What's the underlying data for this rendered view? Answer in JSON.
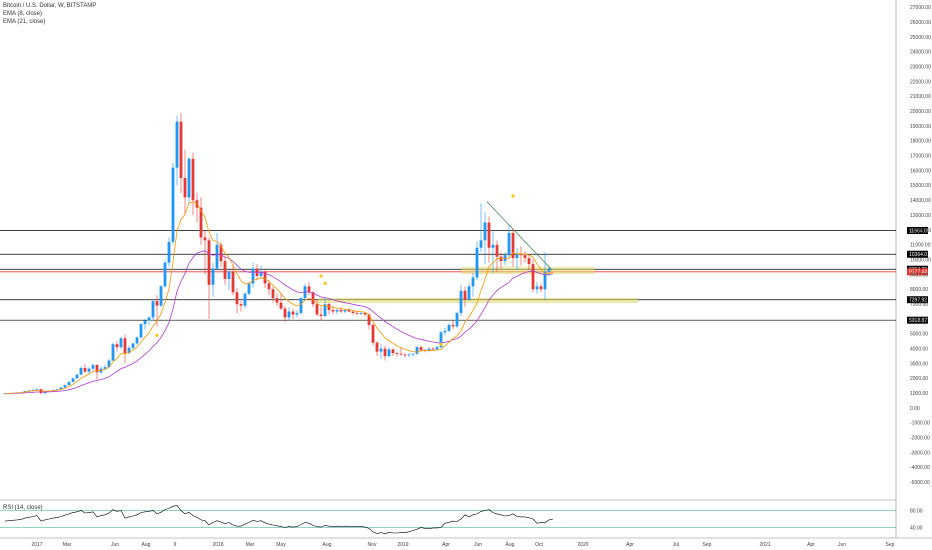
{
  "header": {
    "title": "Bitcoin / U.S. Dollar, W, BITSTAMP",
    "ema_fast": "EMA (8, close)",
    "ema_slow": "EMA (21, close)"
  },
  "rsi_panel": {
    "title": "RSI (14, close)",
    "upper_label": "80.00",
    "lower_label": "40.00"
  },
  "colors": {
    "up": "#2196f3",
    "down": "#e53935",
    "ema_fast": "#ff9800",
    "ema_slow": "#b23bd6",
    "level_line": "#000000",
    "red_level": "#e53935",
    "zone": "#e6e067",
    "rsi_line": "#000000",
    "rsi_band": "#26a69a",
    "marker": "#f5c518"
  },
  "chart_data": {
    "type": "candlestick",
    "y_ticks": [
      "27000.00",
      "26000.00",
      "25000.00",
      "24000.00",
      "23000.00",
      "22000.00",
      "21000.00",
      "20000.00",
      "19000.00",
      "18000.00",
      "17000.00",
      "16000.00",
      "15000.00",
      "14000.00",
      "13000.00",
      "12000.00",
      "11000.00",
      "10000.00",
      "9000.00",
      "8000.00",
      "7000.00",
      "6000.00",
      "5000.00",
      "4000.00",
      "3000.00",
      "2000.00",
      "1000.00",
      "0.00",
      "-1000.00",
      "-2000.00",
      "-3000.00",
      "-4000.00",
      "-5000.00"
    ],
    "ylim": [
      -6000,
      27500
    ],
    "x_ticks": [
      "2017",
      "Mar",
      "Jun",
      "Aug",
      "9",
      "2018",
      "Mar",
      "May",
      "Aug",
      "Nov",
      "2019",
      "Apr",
      "Jun",
      "Aug",
      "Oct",
      "2020",
      "Apr",
      "Jul",
      "Sep",
      "2021",
      "Apr",
      "Jun",
      "Sep"
    ],
    "levels": [
      {
        "value": 11964.09,
        "label": "11964.09",
        "color": "#000000"
      },
      {
        "value": 10364.01,
        "label": "10364.01",
        "color": "#000000"
      },
      {
        "value": 9353.28,
        "label": "9353.28",
        "color": "#000000"
      },
      {
        "value": 9177.44,
        "label": "9177.44",
        "color": "#e53935"
      },
      {
        "value": 7297.92,
        "label": "7297.92",
        "color": "#000000"
      },
      {
        "value": 5918.87,
        "label": "5918.87",
        "color": "#000000"
      }
    ],
    "candles": [
      [
        960,
        1000,
        950,
        995
      ],
      [
        995,
        1010,
        980,
        1000
      ],
      [
        1000,
        1030,
        990,
        1020
      ],
      [
        1020,
        1060,
        1010,
        1050
      ],
      [
        1050,
        1080,
        1020,
        1060
      ],
      [
        1060,
        1150,
        1050,
        1140
      ],
      [
        1140,
        1200,
        1100,
        1180
      ],
      [
        1180,
        1250,
        1150,
        1220
      ],
      [
        1220,
        1300,
        1180,
        1270
      ],
      [
        1270,
        1290,
        950,
        1000
      ],
      [
        1000,
        1110,
        960,
        1080
      ],
      [
        1080,
        1160,
        1060,
        1150
      ],
      [
        1150,
        1230,
        1130,
        1210
      ],
      [
        1210,
        1280,
        1180,
        1260
      ],
      [
        1260,
        1400,
        1240,
        1380
      ],
      [
        1380,
        1560,
        1360,
        1540
      ],
      [
        1540,
        1800,
        1520,
        1760
      ],
      [
        1760,
        2050,
        1700,
        2000
      ],
      [
        2000,
        2300,
        1950,
        2250
      ],
      [
        2250,
        2800,
        2200,
        2700
      ],
      [
        2700,
        2950,
        2350,
        2450
      ],
      [
        2450,
        2750,
        2300,
        2650
      ],
      [
        2650,
        3000,
        2500,
        2900
      ],
      [
        2900,
        2950,
        1900,
        2400
      ],
      [
        2400,
        2800,
        2300,
        2650
      ],
      [
        2650,
        2900,
        2550,
        2750
      ],
      [
        2750,
        3300,
        2700,
        3200
      ],
      [
        3200,
        4400,
        3150,
        4300
      ],
      [
        4300,
        4500,
        3800,
        4100
      ],
      [
        4100,
        4800,
        3950,
        4700
      ],
      [
        4700,
        4950,
        3000,
        3700
      ],
      [
        3700,
        4200,
        3600,
        4050
      ],
      [
        4050,
        4400,
        3950,
        4350
      ],
      [
        4350,
        4850,
        4250,
        4750
      ],
      [
        4750,
        5700,
        4700,
        5650
      ],
      [
        5650,
        6000,
        5300,
        5900
      ],
      [
        5900,
        6200,
        5600,
        6100
      ],
      [
        6100,
        7300,
        5900,
        7200
      ],
      [
        7200,
        7600,
        5500,
        6900
      ],
      [
        6900,
        8300,
        6800,
        8200
      ],
      [
        8200,
        10000,
        8100,
        9800
      ],
      [
        9800,
        11500,
        9500,
        11200
      ],
      [
        11200,
        16500,
        11000,
        16200
      ],
      [
        16200,
        19700,
        15000,
        19300
      ],
      [
        19300,
        19900,
        14500,
        15500
      ],
      [
        15500,
        17400,
        13100,
        14200
      ],
      [
        14200,
        16900,
        13700,
        16800
      ],
      [
        16800,
        17200,
        13000,
        14000
      ],
      [
        14000,
        14500,
        12500,
        13500
      ],
      [
        13500,
        14200,
        11000,
        11500
      ],
      [
        11500,
        12000,
        9000,
        11300
      ],
      [
        11300,
        11500,
        6000,
        8300
      ],
      [
        8300,
        9800,
        7500,
        9400
      ],
      [
        9400,
        11800,
        9300,
        11000
      ],
      [
        11000,
        11200,
        9500,
        9900
      ],
      [
        9900,
        10200,
        8300,
        8700
      ],
      [
        8700,
        9300,
        7900,
        9200
      ],
      [
        9200,
        9700,
        7600,
        7800
      ],
      [
        7800,
        8100,
        6400,
        7000
      ],
      [
        7000,
        7200,
        6500,
        6900
      ],
      [
        6900,
        7800,
        6700,
        7700
      ],
      [
        7700,
        8500,
        7600,
        8400
      ],
      [
        8400,
        9800,
        8100,
        9400
      ],
      [
        9400,
        9700,
        8600,
        8900
      ],
      [
        8900,
        9600,
        8700,
        9200
      ],
      [
        9200,
        9300,
        8100,
        8400
      ],
      [
        8400,
        8600,
        7600,
        8000
      ],
      [
        8000,
        8200,
        7100,
        7400
      ],
      [
        7400,
        7700,
        6900,
        7100
      ],
      [
        7100,
        7700,
        6600,
        6700
      ],
      [
        6700,
        6900,
        5800,
        6100
      ],
      [
        6100,
        6800,
        5900,
        6500
      ],
      [
        6500,
        6700,
        6000,
        6300
      ],
      [
        6300,
        6600,
        6100,
        6400
      ],
      [
        6400,
        7500,
        6300,
        7400
      ],
      [
        7400,
        8400,
        7300,
        8200
      ],
      [
        8200,
        8500,
        7600,
        7800
      ],
      [
        7800,
        7900,
        6800,
        7000
      ],
      [
        7000,
        7300,
        6200,
        6300
      ],
      [
        6300,
        6800,
        5900,
        6200
      ],
      [
        6200,
        7400,
        6100,
        7000
      ],
      [
        7000,
        7100,
        6300,
        6600
      ],
      [
        6600,
        6900,
        6300,
        6500
      ],
      [
        6500,
        6700,
        6300,
        6600
      ],
      [
        6600,
        6800,
        6400,
        6500
      ],
      [
        6500,
        6700,
        6400,
        6600
      ],
      [
        6600,
        6750,
        6450,
        6500
      ],
      [
        6500,
        6600,
        6300,
        6400
      ],
      [
        6400,
        6550,
        6250,
        6350
      ],
      [
        6350,
        6500,
        6250,
        6400
      ],
      [
        6400,
        6500,
        6200,
        6300
      ],
      [
        6300,
        6400,
        5300,
        5600
      ],
      [
        5600,
        5700,
        4200,
        4400
      ],
      [
        4400,
        4500,
        3500,
        3800
      ],
      [
        3800,
        4300,
        3300,
        4000
      ],
      [
        4000,
        4200,
        3200,
        3500
      ],
      [
        3500,
        4100,
        3400,
        3950
      ],
      [
        3950,
        4000,
        3500,
        3700
      ],
      [
        3700,
        3800,
        3450,
        3650
      ],
      [
        3650,
        4100,
        3550,
        3600
      ],
      [
        3600,
        3700,
        3400,
        3550
      ],
      [
        3550,
        3700,
        3400,
        3600
      ],
      [
        3600,
        3700,
        3450,
        3650
      ],
      [
        3650,
        4200,
        3600,
        4100
      ],
      [
        4100,
        4200,
        3800,
        3900
      ],
      [
        3900,
        4000,
        3750,
        3850
      ],
      [
        3850,
        4100,
        3800,
        4000
      ],
      [
        4000,
        4100,
        3850,
        3950
      ],
      [
        3950,
        4200,
        3900,
        4100
      ],
      [
        4100,
        5200,
        4000,
        5100
      ],
      [
        5100,
        5400,
        4900,
        5200
      ],
      [
        5200,
        5700,
        5100,
        5600
      ],
      [
        5600,
        5900,
        5300,
        5500
      ],
      [
        5500,
        6500,
        5400,
        6400
      ],
      [
        6400,
        8300,
        6200,
        7900
      ],
      [
        7900,
        8200,
        6800,
        7300
      ],
      [
        7300,
        8400,
        7200,
        8200
      ],
      [
        8200,
        9100,
        7500,
        8800
      ],
      [
        8800,
        11200,
        8600,
        10800
      ],
      [
        10800,
        13800,
        10500,
        11300
      ],
      [
        11300,
        13200,
        9700,
        12500
      ],
      [
        12500,
        12900,
        9800,
        10800
      ],
      [
        10800,
        11900,
        9100,
        11000
      ],
      [
        11000,
        11300,
        9200,
        10200
      ],
      [
        10200,
        10500,
        9400,
        9900
      ],
      [
        9900,
        10500,
        9600,
        10300
      ],
      [
        10300,
        12300,
        10100,
        11800
      ],
      [
        11800,
        12100,
        9500,
        10100
      ],
      [
        10100,
        10800,
        9300,
        10400
      ],
      [
        10400,
        10900,
        9600,
        10300
      ],
      [
        10300,
        10600,
        9800,
        10100
      ],
      [
        10100,
        10300,
        9300,
        9700
      ],
      [
        9700,
        10000,
        7800,
        8000
      ],
      [
        8000,
        8500,
        7700,
        8200
      ],
      [
        8200,
        8400,
        7800,
        8000
      ],
      [
        8000,
        10500,
        7300,
        9200
      ],
      [
        9200,
        9600,
        8900,
        9400
      ]
    ],
    "ema_fast": [
      960,
      980,
      1000,
      1020,
      1040,
      1080,
      1120,
      1160,
      1200,
      1150,
      1130,
      1140,
      1160,
      1190,
      1240,
      1330,
      1450,
      1600,
      1800,
      2000,
      2150,
      2300,
      2450,
      2500,
      2550,
      2600,
      2750,
      3100,
      3350,
      3650,
      3650,
      3750,
      3900,
      4100,
      4450,
      4770,
      5060,
      5520,
      5830,
      6360,
      7120,
      8020,
      9830,
      11920,
      12710,
      13040,
      13840,
      13880,
      13800,
      13290,
      12870,
      11850,
      11290,
      11230,
      10930,
      10430,
      10160,
      9640,
      9050,
      8570,
      8370,
      8380,
      8610,
      8670,
      8790,
      8700,
      8540,
      8290,
      8020,
      7730,
      7370,
      7180,
      7000,
      6870,
      6990,
      7260,
      7380,
      7300,
      7080,
      6880,
      6910,
      6840,
      6770,
      6730,
      6680,
      6660,
      6630,
      6570,
      6520,
      6490,
      6450,
      6260,
      5840,
      5380,
      5070,
      4720,
      4550,
      4360,
      4200,
      4070,
      3950,
      3870,
      3800,
      3770,
      3860,
      3870,
      3860,
      3890,
      3900,
      3940,
      4200,
      4420,
      4680,
      4860,
      5200,
      5800,
      6130,
      6590,
      7080,
      7910,
      8670,
      9520,
      9800,
      10070,
      10100,
      10050,
      10090,
      10470,
      10390,
      10390,
      10370,
      10310,
      10170,
      9690,
      9360,
      9060,
      9090,
      9160
    ],
    "ema_slow": [
      960,
      970,
      980,
      990,
      1000,
      1020,
      1040,
      1060,
      1080,
      1080,
      1080,
      1090,
      1100,
      1120,
      1140,
      1180,
      1230,
      1300,
      1390,
      1510,
      1600,
      1700,
      1800,
      1850,
      1920,
      1990,
      2100,
      2300,
      2460,
      2660,
      2750,
      2870,
      3000,
      3160,
      3390,
      3620,
      3850,
      4150,
      4400,
      4750,
      5200,
      5750,
      6700,
      7850,
      8550,
      9060,
      9760,
      10140,
      10440,
      10530,
      10600,
      10390,
      10300,
      10360,
      10320,
      10170,
      10080,
      9880,
      9620,
      9370,
      9210,
      9140,
      9160,
      9140,
      9150,
      9080,
      8980,
      8840,
      8680,
      8500,
      8280,
      8120,
      7960,
      7820,
      7780,
      7820,
      7810,
      7740,
      7610,
      7480,
      7440,
      7360,
      7290,
      7220,
      7160,
      7100,
      7050,
      6990,
      6930,
      6880,
      6820,
      6710,
      6500,
      6260,
      6060,
      5830,
      5660,
      5480,
      5310,
      5160,
      5020,
      4890,
      4780,
      4680,
      4630,
      4560,
      4490,
      4450,
      4400,
      4370,
      4430,
      4500,
      4600,
      4680,
      4840,
      5120,
      5310,
      5580,
      5870,
      6320,
      6780,
      7290,
      7610,
      7920,
      8130,
      8290,
      8460,
      8760,
      8870,
      9010,
      9120,
      9200,
      9250,
      9140,
      9060,
      8960,
      9000,
      9040
    ],
    "rsi": [
      55,
      56,
      57,
      58,
      59,
      62,
      64,
      66,
      68,
      55,
      58,
      60,
      62,
      63,
      66,
      69,
      72,
      75,
      77,
      80,
      74,
      75,
      77,
      65,
      68,
      70,
      74,
      82,
      78,
      80,
      62,
      65,
      67,
      70,
      75,
      77,
      78,
      80,
      72,
      76,
      82,
      85,
      90,
      92,
      80,
      72,
      76,
      68,
      64,
      58,
      56,
      46,
      52,
      56,
      53,
      49,
      52,
      46,
      43,
      43,
      48,
      52,
      57,
      54,
      56,
      51,
      48,
      46,
      44,
      42,
      40,
      42,
      41,
      42,
      47,
      52,
      50,
      45,
      42,
      41,
      45,
      43,
      42,
      43,
      42,
      43,
      42,
      42,
      42,
      42,
      41,
      38,
      30,
      26,
      28,
      25,
      29,
      27,
      27,
      28,
      28,
      30,
      33,
      36,
      40,
      38,
      37,
      39,
      39,
      40,
      50,
      52,
      55,
      54,
      60,
      70,
      65,
      70,
      72,
      78,
      80,
      82,
      75,
      72,
      70,
      67,
      68,
      72,
      66,
      65,
      65,
      63,
      60,
      50,
      52,
      51,
      58,
      60
    ]
  }
}
